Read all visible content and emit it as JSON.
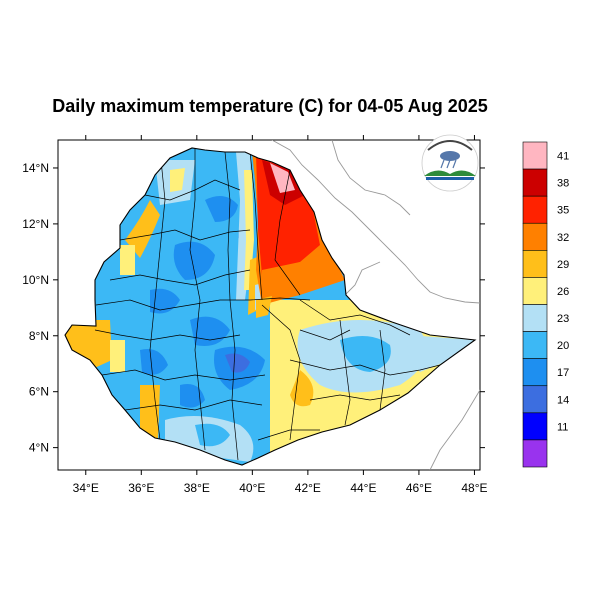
{
  "map": {
    "title": "Daily maximum temperature (C) for 04-05 Aug 2025",
    "lon_ticks": [
      "34°E",
      "36°E",
      "38°E",
      "40°E",
      "42°E",
      "44°E",
      "46°E",
      "48°E"
    ],
    "lat_ticks": [
      "4°N",
      "6°N",
      "8°N",
      "10°N",
      "12°N",
      "14°N"
    ],
    "lon_range": [
      33,
      48.2
    ],
    "lat_range": [
      3.2,
      15.0
    ],
    "logo_name": "ethiopian-meteorology-institute-logo"
  },
  "colorbar": {
    "labels": [
      "41",
      "38",
      "35",
      "32",
      "29",
      "26",
      "23",
      "20",
      "17",
      "14",
      "11"
    ],
    "colors": [
      "#ffb6c1",
      "#cc0000",
      "#ff2200",
      "#ff8000",
      "#ffbf1a",
      "#fff07a",
      "#b3e0f5",
      "#3cb8f5",
      "#1e8ff0",
      "#3c6ee0",
      "#0000ff",
      "#9933ee"
    ]
  }
}
